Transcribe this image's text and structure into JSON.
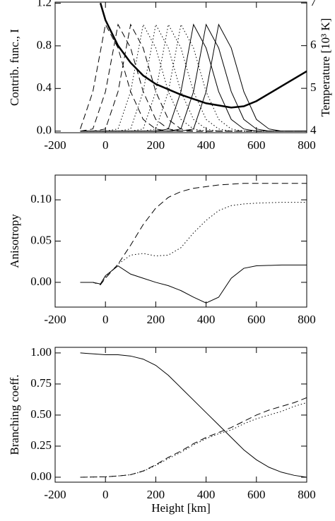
{
  "chart_data": [
    {
      "type": "line",
      "ylabel": "Contrib. func., I",
      "y2label": "Temperature [10³ K]",
      "xlim": [
        -200,
        800
      ],
      "xticks": [
        -200,
        0,
        200,
        400,
        600,
        800
      ],
      "ylim": [
        -0.015,
        1.21
      ],
      "yticks": [
        {
          "value": 0,
          "label": "0.0"
        },
        0.4,
        0.8,
        1.2
      ],
      "y2lim": [
        3.96,
        7.02
      ],
      "y2ticks": [
        4,
        5,
        6,
        7
      ],
      "x": [
        -100,
        -50,
        0,
        50,
        100,
        150,
        200,
        250,
        300,
        350,
        400,
        450,
        500,
        550,
        600,
        650,
        700,
        750,
        800
      ],
      "series": [
        {
          "color": "#000",
          "dash": "dashed",
          "values": [
            0.02,
            0.37,
            1,
            0.78,
            0.37,
            0.11,
            0.02,
            0,
            0,
            0,
            0,
            0,
            0,
            0,
            0,
            0,
            0,
            0,
            0
          ]
        },
        {
          "color": "#000",
          "dash": "dashed",
          "values": [
            0,
            0.02,
            0.37,
            1,
            0.78,
            0.37,
            0.11,
            0.02,
            0,
            0,
            0,
            0,
            0,
            0,
            0,
            0,
            0,
            0,
            0
          ]
        },
        {
          "color": "#000",
          "dash": "dashed",
          "values": [
            0,
            0,
            0.02,
            0.37,
            1,
            0.78,
            0.37,
            0.11,
            0.02,
            0,
            0,
            0,
            0,
            0,
            0,
            0,
            0,
            0,
            0
          ]
        },
        {
          "color": "#000",
          "dash": "dotted",
          "values": [
            0,
            0,
            0,
            0.02,
            0.37,
            1,
            0.78,
            0.37,
            0.11,
            0.02,
            0,
            0,
            0,
            0,
            0,
            0,
            0,
            0,
            0
          ]
        },
        {
          "color": "#000",
          "dash": "dotted",
          "values": [
            0,
            0,
            0,
            0,
            0.02,
            0.37,
            1,
            0.78,
            0.37,
            0.11,
            0.02,
            0,
            0,
            0,
            0,
            0,
            0,
            0,
            0
          ]
        },
        {
          "color": "#000",
          "dash": "dotted",
          "values": [
            0,
            0,
            0,
            0,
            0,
            0.02,
            0.37,
            1,
            0.78,
            0.37,
            0.11,
            0.02,
            0,
            0,
            0,
            0,
            0,
            0,
            0
          ]
        },
        {
          "color": "#000",
          "dash": "dotted",
          "values": [
            0,
            0,
            0,
            0,
            0,
            0,
            0.02,
            0.37,
            1,
            0.78,
            0.37,
            0.11,
            0.02,
            0,
            0,
            0,
            0,
            0,
            0
          ]
        },
        {
          "color": "#000",
          "dash": "solid",
          "values": [
            0,
            0,
            0,
            0,
            0,
            0,
            0,
            0.02,
            0.37,
            1,
            0.78,
            0.37,
            0.11,
            0.02,
            0,
            0,
            0,
            0,
            0
          ]
        },
        {
          "color": "#000",
          "dash": "solid",
          "values": [
            0,
            0,
            0,
            0,
            0,
            0,
            0,
            0,
            0.02,
            0.37,
            1,
            0.78,
            0.37,
            0.11,
            0.02,
            0,
            0,
            0,
            0
          ]
        },
        {
          "color": "#000",
          "dash": "solid",
          "values": [
            0,
            0,
            0,
            0,
            0,
            0,
            0,
            0,
            0,
            0.02,
            0.37,
            1,
            0.78,
            0.37,
            0.11,
            0.02,
            0,
            0,
            0
          ]
        },
        {
          "color": "#000",
          "dash": "solid",
          "width": 2.5,
          "axis": "y2",
          "x": [
            -20,
            0,
            50,
            100,
            150,
            200,
            300,
            400,
            500,
            550,
            600,
            700,
            800
          ],
          "values": [
            7.0,
            6.6,
            6.0,
            5.6,
            5.3,
            5.1,
            4.85,
            4.65,
            4.55,
            4.58,
            4.7,
            5.05,
            5.4
          ]
        }
      ]
    },
    {
      "type": "line",
      "ylabel": "Anisotropy",
      "xlim": [
        -200,
        800
      ],
      "xticks": [
        -200,
        0,
        200,
        400,
        600,
        800
      ],
      "ylim": [
        -0.03,
        0.13
      ],
      "yticks": [
        {
          "value": 0,
          "label": "0.00"
        },
        0.05,
        {
          "value": 0.1,
          "label": "0.10"
        }
      ],
      "x": [
        -100,
        -50,
        -20,
        0,
        50,
        100,
        150,
        200,
        250,
        300,
        350,
        400,
        450,
        500,
        550,
        600,
        700,
        800
      ],
      "series": [
        {
          "color": "#000",
          "dash": "solid",
          "values": [
            0,
            0,
            -0.002,
            0.008,
            0.02,
            0.01,
            0.005,
            0,
            -0.004,
            -0.01,
            -0.018,
            -0.025,
            -0.018,
            0.005,
            0.017,
            0.02,
            0.021,
            0.021
          ]
        },
        {
          "color": "#000",
          "dash": "dashed",
          "values": [
            0,
            0,
            -0.003,
            0.005,
            0.022,
            0.045,
            0.07,
            0.09,
            0.103,
            0.11,
            0.114,
            0.116,
            0.118,
            0.119,
            0.12,
            0.12,
            0.12,
            0.12
          ]
        },
        {
          "color": "#000",
          "dash": "dotted",
          "values": [
            0,
            0,
            -0.002,
            0.006,
            0.022,
            0.033,
            0.035,
            0.032,
            0.033,
            0.042,
            0.06,
            0.075,
            0.087,
            0.093,
            0.095,
            0.096,
            0.097,
            0.097
          ]
        }
      ]
    },
    {
      "type": "line",
      "ylabel": "Branching coeff.",
      "xlabel": "Height [km]",
      "xlim": [
        -200,
        800
      ],
      "xticks": [
        -200,
        0,
        200,
        400,
        600,
        800
      ],
      "ylim": [
        -0.04,
        1.045
      ],
      "yticks": [
        {
          "value": 0,
          "label": "0.00"
        },
        0.25,
        {
          "value": 0.5,
          "label": "0.50"
        },
        0.75,
        {
          "value": 1,
          "label": "1.00"
        }
      ],
      "x": [
        -100,
        0,
        50,
        100,
        150,
        200,
        250,
        300,
        350,
        400,
        450,
        500,
        550,
        600,
        650,
        700,
        750,
        800
      ],
      "series": [
        {
          "color": "#000",
          "dash": "solid",
          "values": [
            1.0,
            0.985,
            0.985,
            0.975,
            0.95,
            0.9,
            0.82,
            0.72,
            0.62,
            0.52,
            0.42,
            0.32,
            0.22,
            0.14,
            0.08,
            0.04,
            0.015,
            0.0
          ]
        },
        {
          "color": "#000",
          "dash": "dashed",
          "values": [
            0,
            0.003,
            0.01,
            0.02,
            0.05,
            0.1,
            0.16,
            0.21,
            0.27,
            0.32,
            0.36,
            0.4,
            0.45,
            0.5,
            0.54,
            0.57,
            0.6,
            0.64
          ]
        },
        {
          "color": "#000",
          "dash": "dotted",
          "values": [
            0,
            0.003,
            0.01,
            0.02,
            0.048,
            0.095,
            0.15,
            0.2,
            0.26,
            0.31,
            0.35,
            0.38,
            0.43,
            0.47,
            0.5,
            0.53,
            0.57,
            0.6
          ]
        }
      ]
    }
  ]
}
